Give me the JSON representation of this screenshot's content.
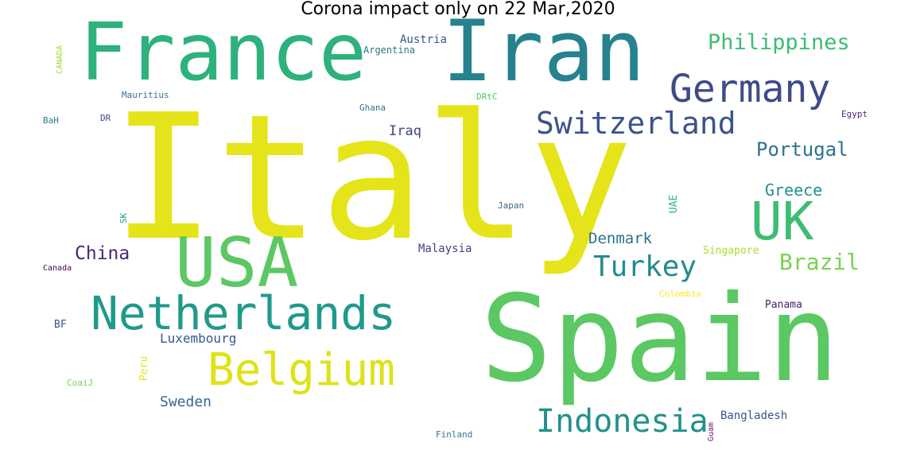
{
  "chart_data": {
    "type": "wordcloud",
    "title": "Corona impact only on 22 Mar,2020",
    "colormap": "viridis",
    "words": [
      {
        "text": "Italy",
        "color": "#e5e41a"
      },
      {
        "text": "Spain",
        "color": "#5cc863"
      },
      {
        "text": "Iran",
        "color": "#26828e"
      },
      {
        "text": "France",
        "color": "#2db27d"
      },
      {
        "text": "USA",
        "color": "#5cc863"
      },
      {
        "text": "Netherlands",
        "color": "#1f9a8a"
      },
      {
        "text": "Belgium",
        "color": "#dde318"
      },
      {
        "text": "UK",
        "color": "#3dbc74"
      },
      {
        "text": "Germany",
        "color": "#3e4a89"
      },
      {
        "text": "Indonesia",
        "color": "#21918c"
      },
      {
        "text": "Switzerland",
        "color": "#3b528b"
      },
      {
        "text": "Turkey",
        "color": "#228c8d"
      },
      {
        "text": "Philippines",
        "color": "#3dbc74"
      },
      {
        "text": "Brazil",
        "color": "#7ad151"
      },
      {
        "text": "Portugal",
        "color": "#2c728e"
      },
      {
        "text": "China",
        "color": "#482878"
      },
      {
        "text": "Greece",
        "color": "#218f8d"
      },
      {
        "text": "Denmark",
        "color": "#2c728e"
      },
      {
        "text": "Sweden",
        "color": "#31688e"
      },
      {
        "text": "Luxembourg",
        "color": "#38598c"
      },
      {
        "text": "Iraq",
        "color": "#414487"
      },
      {
        "text": "Bangladesh",
        "color": "#3b528b"
      },
      {
        "text": "Malaysia",
        "color": "#433e85"
      },
      {
        "text": "Austria",
        "color": "#39568c"
      },
      {
        "text": "Argentina",
        "color": "#2a788e"
      },
      {
        "text": "Singapore",
        "color": "#addc30"
      },
      {
        "text": "Panama",
        "color": "#481f70"
      },
      {
        "text": "Mauritius",
        "color": "#2a788e"
      },
      {
        "text": "Colombia",
        "color": "#fde725"
      },
      {
        "text": "Egypt",
        "color": "#482878"
      },
      {
        "text": "Ghana",
        "color": "#2c728e"
      },
      {
        "text": "Japan",
        "color": "#31688e"
      },
      {
        "text": "Finland",
        "color": "#2a788e"
      },
      {
        "text": "Canada",
        "color": "#440154"
      },
      {
        "text": "CANADA",
        "color": "#a0da39"
      },
      {
        "text": "UAE",
        "color": "#35b779"
      },
      {
        "text": "Peru",
        "color": "#e5e419"
      },
      {
        "text": "Guam",
        "color": "#5a1a6b"
      },
      {
        "text": "DRtC",
        "color": "#52c569"
      },
      {
        "text": "BaH",
        "color": "#287d8e"
      },
      {
        "text": "DR",
        "color": "#3e4a89"
      },
      {
        "text": "SK",
        "color": "#1f9e89"
      },
      {
        "text": "BF",
        "color": "#3b528b"
      },
      {
        "text": "CoaiJ",
        "color": "#7ad151"
      }
    ]
  }
}
